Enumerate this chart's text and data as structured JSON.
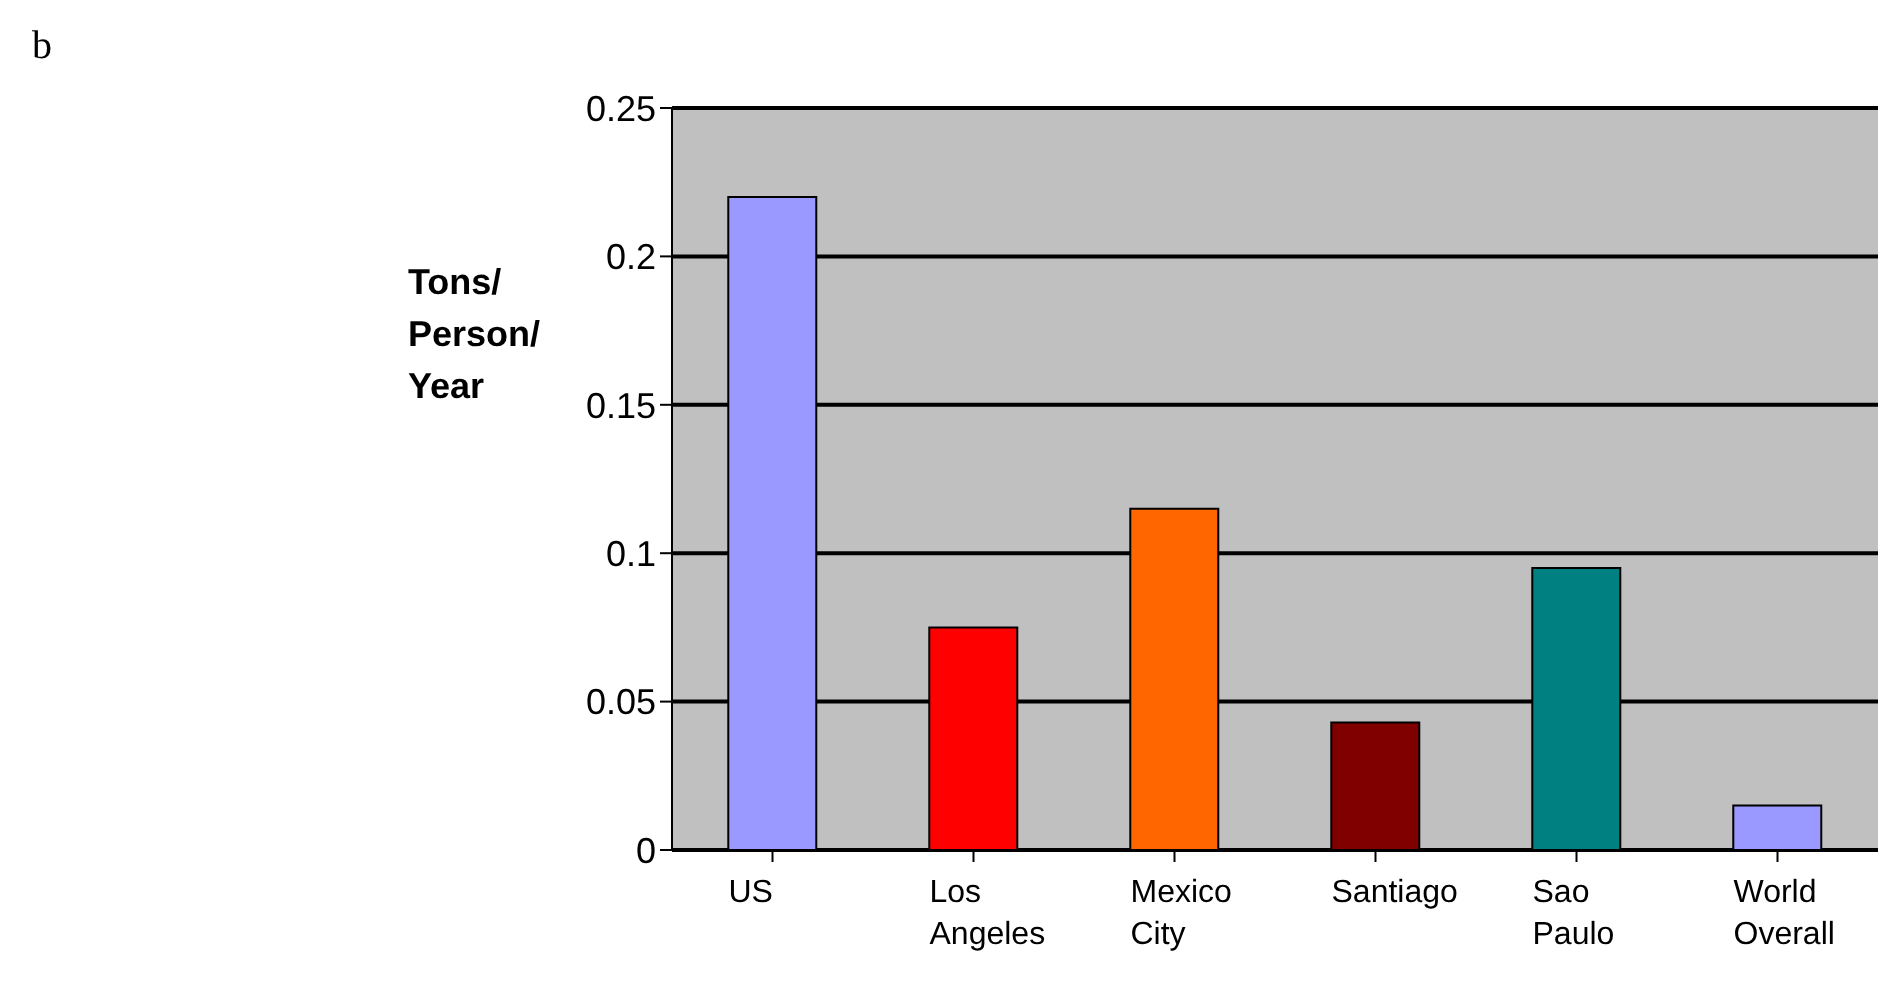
{
  "chart_data": {
    "type": "bar",
    "ylabel": "Tons/ Person/ Year",
    "annotations": [
      "b"
    ],
    "categories": [
      "US",
      "Los Angeles",
      "Mexico City",
      "Santiago",
      "Sao Paulo",
      "World Overall"
    ],
    "values": [
      0.22,
      0.075,
      0.115,
      0.043,
      0.095,
      0.015
    ],
    "colors": [
      "#9999ff",
      "#ff0000",
      "#ff6600",
      "#800000",
      "#008080",
      "#9999ff"
    ],
    "ylim": [
      0,
      0.25
    ],
    "yticks": [
      0,
      0.05,
      0.1,
      0.15,
      0.2,
      0.25
    ],
    "grid": "y",
    "legend": false
  }
}
